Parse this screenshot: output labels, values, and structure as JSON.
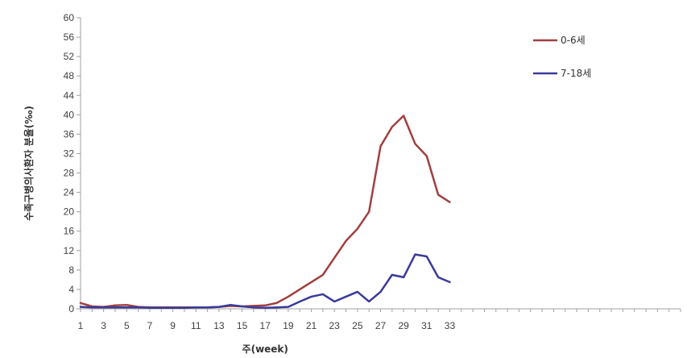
{
  "chart_data": {
    "type": "line",
    "title": "",
    "xlabel": "주(week)",
    "ylabel": "수족구병의사환자 분율(‰)",
    "x_tick_labels": [
      "1",
      "3",
      "5",
      "7",
      "9",
      "11",
      "13",
      "15",
      "17",
      "19",
      "21",
      "23",
      "25",
      "27",
      "29",
      "31",
      "33"
    ],
    "y_tick_labels": [
      "0",
      "4",
      "8",
      "12",
      "16",
      "20",
      "24",
      "28",
      "32",
      "36",
      "40",
      "44",
      "48",
      "52",
      "56",
      "60"
    ],
    "xlim": [
      1,
      53
    ],
    "ylim": [
      0,
      60
    ],
    "grid": false,
    "legend_position": "top-right",
    "x": [
      1,
      2,
      3,
      4,
      5,
      6,
      7,
      8,
      9,
      10,
      11,
      12,
      13,
      14,
      15,
      16,
      17,
      18,
      19,
      20,
      21,
      22,
      23,
      24,
      25,
      26,
      27,
      28,
      29,
      30,
      31,
      32,
      33
    ],
    "series": [
      {
        "name": "0-6세",
        "color": "#a04040",
        "values": [
          1.2,
          0.5,
          0.4,
          0.7,
          0.8,
          0.4,
          0.3,
          0.3,
          0.3,
          0.3,
          0.3,
          0.3,
          0.4,
          0.6,
          0.5,
          0.6,
          0.7,
          1.2,
          2.5,
          4.0,
          5.5,
          7.0,
          10.5,
          14.0,
          16.5,
          20.0,
          33.5,
          37.5,
          39.8,
          34.0,
          31.5,
          23.5,
          22.0
        ]
      },
      {
        "name": "7-18세",
        "color": "#3a3a9a",
        "values": [
          0.4,
          0.3,
          0.3,
          0.3,
          0.3,
          0.3,
          0.2,
          0.2,
          0.2,
          0.2,
          0.3,
          0.3,
          0.4,
          0.8,
          0.5,
          0.3,
          0.2,
          0.3,
          0.4,
          1.5,
          2.5,
          3.0,
          1.5,
          2.5,
          3.5,
          1.5,
          3.5,
          7.0,
          6.5,
          11.2,
          10.8,
          6.5,
          5.5
        ]
      }
    ]
  }
}
